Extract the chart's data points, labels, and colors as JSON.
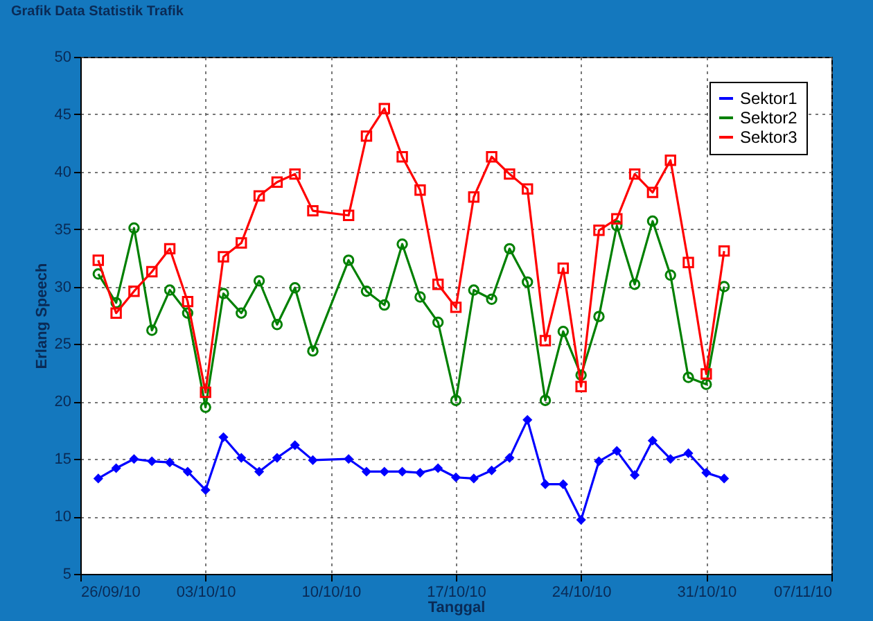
{
  "chart_data": {
    "type": "line",
    "title": "Grafik Data Statistik Trafik",
    "xlabel": "Tanggal",
    "ylabel": "Erlang Speech",
    "x": [
      "--09-27",
      "--09-28",
      "--09-29",
      "--09-30",
      "--10-01",
      "--10-02",
      "--10-03",
      "--10-04",
      "--10-05",
      "--10-06",
      "--10-07",
      "--10-08",
      "--10-09",
      "--10-11",
      "--10-12",
      "--10-13",
      "--10-14",
      "--10-15",
      "--10-16",
      "--10-17",
      "--10-18",
      "--10-19",
      "--10-20",
      "--10-21",
      "--10-22",
      "--10-23",
      "--10-24",
      "--10-25",
      "--10-26",
      "--10-27",
      "--10-28",
      "--10-29",
      "--10-30",
      "--10-31",
      "--11-01"
    ],
    "series": [
      {
        "name": "Sektor1",
        "color": "#0000ff",
        "marker": "diamond",
        "values": [
          13.3,
          14.2,
          15.0,
          14.8,
          14.7,
          13.9,
          12.3,
          16.9,
          15.1,
          13.9,
          15.1,
          16.2,
          14.9,
          15.0,
          13.9,
          13.9,
          13.9,
          13.8,
          14.2,
          13.4,
          13.3,
          14.0,
          15.1,
          18.4,
          12.8,
          12.8,
          9.7,
          14.8,
          15.7,
          13.6,
          16.6,
          15.0,
          15.5,
          13.8,
          13.3
        ]
      },
      {
        "name": "Sektor2",
        "color": "#008000",
        "marker": "circle",
        "values": [
          31.1,
          28.6,
          35.1,
          26.2,
          29.7,
          27.7,
          19.5,
          29.4,
          27.7,
          30.5,
          26.7,
          29.9,
          24.4,
          32.3,
          29.6,
          28.4,
          33.7,
          29.1,
          26.9,
          20.1,
          29.7,
          28.9,
          33.3,
          30.4,
          20.1,
          26.1,
          22.3,
          27.4,
          35.3,
          30.2,
          35.7,
          31.0,
          22.1,
          21.5,
          30.0
        ]
      },
      {
        "name": "Sektor3",
        "color": "#ff0000",
        "marker": "square",
        "values": [
          32.3,
          27.7,
          29.6,
          31.3,
          33.3,
          28.7,
          20.8,
          32.6,
          33.8,
          37.9,
          39.1,
          39.8,
          36.6,
          36.2,
          43.1,
          45.5,
          41.3,
          38.4,
          30.2,
          28.2,
          37.8,
          41.3,
          39.8,
          38.5,
          25.3,
          31.6,
          21.3,
          34.9,
          35.9,
          39.8,
          38.2,
          41.0,
          32.1,
          22.4,
          33.1
        ]
      }
    ],
    "xlim": [
      "--09-26",
      "--11-07"
    ],
    "xticks": [
      {
        "value": "--09-26",
        "label": "26/09/10"
      },
      {
        "value": "--10-03",
        "label": "03/10/10"
      },
      {
        "value": "--10-10",
        "label": "10/10/10"
      },
      {
        "value": "--10-17",
        "label": "17/10/10"
      },
      {
        "value": "--10-24",
        "label": "24/10/10"
      },
      {
        "value": "--10-31",
        "label": "31/10/10"
      },
      {
        "value": "--11-07",
        "label": "07/11/10"
      }
    ],
    "ylim": [
      5,
      50
    ],
    "yticks": [
      5,
      10,
      15,
      20,
      25,
      30,
      35,
      40,
      45,
      50
    ],
    "grid": true,
    "legend": "top right",
    "line_style": "solid"
  }
}
